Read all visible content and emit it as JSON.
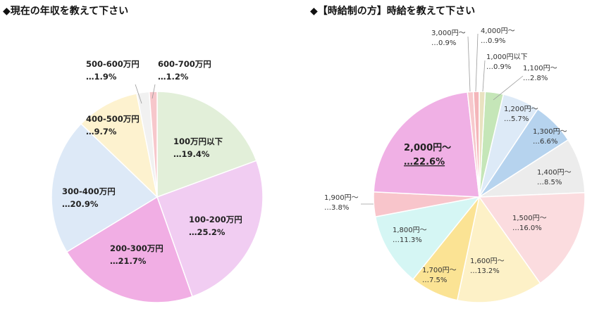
{
  "chart_data": [
    {
      "type": "pie",
      "title": "◆現在の年収を教えて下さい",
      "unit": "%",
      "colors": [
        "#e2efd9",
        "#f1cdf2",
        "#f1aee4",
        "#dde9f7",
        "#fdf2cf",
        "#f1f1f1",
        "#f7c7cb"
      ],
      "slices": [
        {
          "name": "100万円以下",
          "value": 19.4,
          "label": "…19.4%"
        },
        {
          "name": "100-200万円",
          "value": 25.2,
          "label": "…25.2%"
        },
        {
          "name": "200-300万円",
          "value": 21.7,
          "label": "…21.7%"
        },
        {
          "name": "300-400万円",
          "value": 20.9,
          "label": "…20.9%"
        },
        {
          "name": "400-500万円",
          "value": 9.7,
          "label": "…9.7%"
        },
        {
          "name": "500-600万円",
          "value": 1.9,
          "label": "…1.9%"
        },
        {
          "name": "600-700万円",
          "value": 1.2,
          "label": "…1.2%"
        }
      ]
    },
    {
      "type": "pie",
      "title": "◆【時給制の方】時給を教えて下さい",
      "unit": "%",
      "colors": [
        "#c5e6b8",
        "#ddeaf7",
        "#b6d3ee",
        "#ececec",
        "#fbdcdf",
        "#fdf1c7",
        "#fbe394",
        "#d5f6f4",
        "#f8c5cb",
        "#f0b0e5",
        "#f7c9cd",
        "#f4b6ba",
        "#e9e2c0"
      ],
      "slices": [
        {
          "name": "1,100円～",
          "value": 2.8,
          "label": "…2.8%"
        },
        {
          "name": "1,200円～",
          "value": 5.7,
          "label": "…5.7%"
        },
        {
          "name": "1,300円～",
          "value": 6.6,
          "label": "…6.6%"
        },
        {
          "name": "1,400円～",
          "value": 8.5,
          "label": "…8.5%"
        },
        {
          "name": "1,500円～",
          "value": 16.0,
          "label": "…16.0%"
        },
        {
          "name": "1,600円～",
          "value": 13.2,
          "label": "…13.2%"
        },
        {
          "name": "1,700円～",
          "value": 7.5,
          "label": "…7.5%"
        },
        {
          "name": "1,800円～",
          "value": 11.3,
          "label": "…11.3%"
        },
        {
          "name": "1,900円～",
          "value": 3.8,
          "label": "…3.8%"
        },
        {
          "name": "2,000円～",
          "value": 22.6,
          "label": "…22.6%"
        },
        {
          "name": "3,000円～",
          "value": 0.9,
          "label": "…0.9%"
        },
        {
          "name": "4,000円～",
          "value": 0.9,
          "label": "…0.9%"
        },
        {
          "name": "1,000円以下",
          "value": 0.9,
          "label": "…0.9%"
        }
      ]
    }
  ]
}
